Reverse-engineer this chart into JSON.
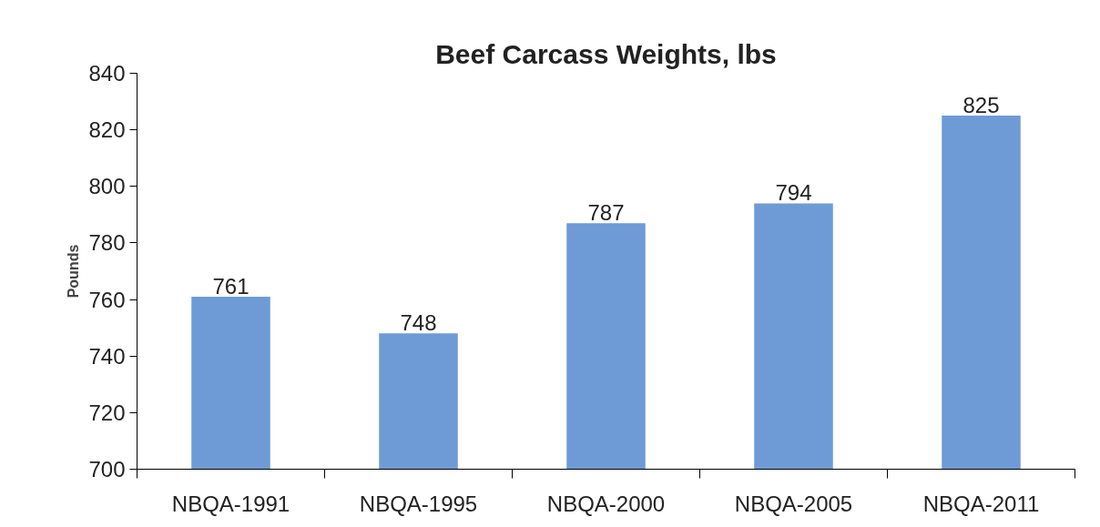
{
  "chart_data": {
    "type": "bar",
    "title": "Beef Carcass Weights, lbs",
    "ylabel": "Pounds",
    "categories": [
      "NBQA-1991",
      "NBQA-1995",
      "NBQA-2000",
      "NBQA-2005",
      "NBQA-2011"
    ],
    "values": [
      761,
      748,
      787,
      794,
      825
    ],
    "color": "#6e9bd5",
    "ylim": [
      700,
      840
    ],
    "yticks": [
      700,
      720,
      740,
      760,
      780,
      800,
      820,
      840
    ],
    "grid": false,
    "data_labels": true
  }
}
